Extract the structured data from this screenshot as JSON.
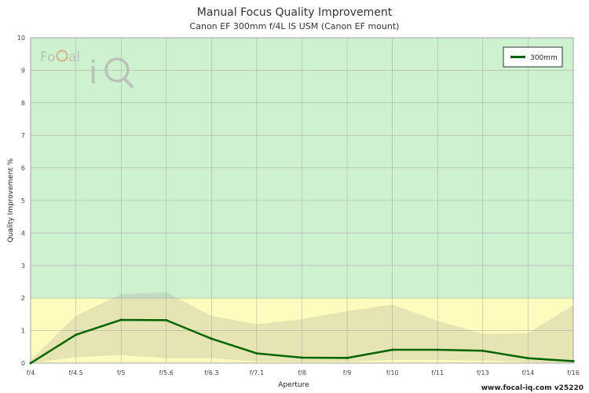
{
  "chart_data": {
    "type": "line",
    "title": "Manual Focus Quality Improvement",
    "subtitle": "Canon EF 300mm f/4L IS USM (Canon EF mount)",
    "xlabel": "Aperture",
    "ylabel": "Quality Improvement %",
    "ylim": [
      0,
      10
    ],
    "yticks": [
      "0",
      "1",
      "2",
      "3",
      "4",
      "5",
      "6",
      "7",
      "8",
      "9",
      "10"
    ],
    "categories": [
      "f/4",
      "f/4.5",
      "f/5",
      "f/5.6",
      "f/6.3",
      "f/7.1",
      "f/8",
      "f/9",
      "f/10",
      "f/11",
      "f/13",
      "f/14",
      "f/16"
    ],
    "series": [
      {
        "name": "300mm",
        "color": "#006400",
        "values": [
          0.0,
          0.87,
          1.33,
          1.32,
          0.75,
          0.3,
          0.17,
          0.16,
          0.41,
          0.41,
          0.38,
          0.15,
          0.06
        ],
        "band_upper": [
          0.1,
          1.45,
          2.12,
          2.18,
          1.45,
          1.2,
          1.35,
          1.6,
          1.8,
          1.3,
          0.9,
          0.92,
          1.78
        ],
        "band_lower": [
          0.0,
          0.18,
          0.25,
          0.15,
          0.15,
          0.05,
          0.03,
          0.04,
          0.1,
          0.1,
          0.08,
          0.03,
          0.0
        ]
      }
    ],
    "zones": [
      {
        "from": 0,
        "to": 2,
        "color": "#fdfbbd"
      },
      {
        "from": 2,
        "to": 10,
        "color": "#cef2cf"
      }
    ],
    "legend_position": "top-right",
    "grid": true
  },
  "logo": {
    "text_1": "Fo",
    "text_2": "al",
    "text_3": "i"
  },
  "footer": {
    "site": "www.focal-iq.com",
    "version": "v25220"
  }
}
